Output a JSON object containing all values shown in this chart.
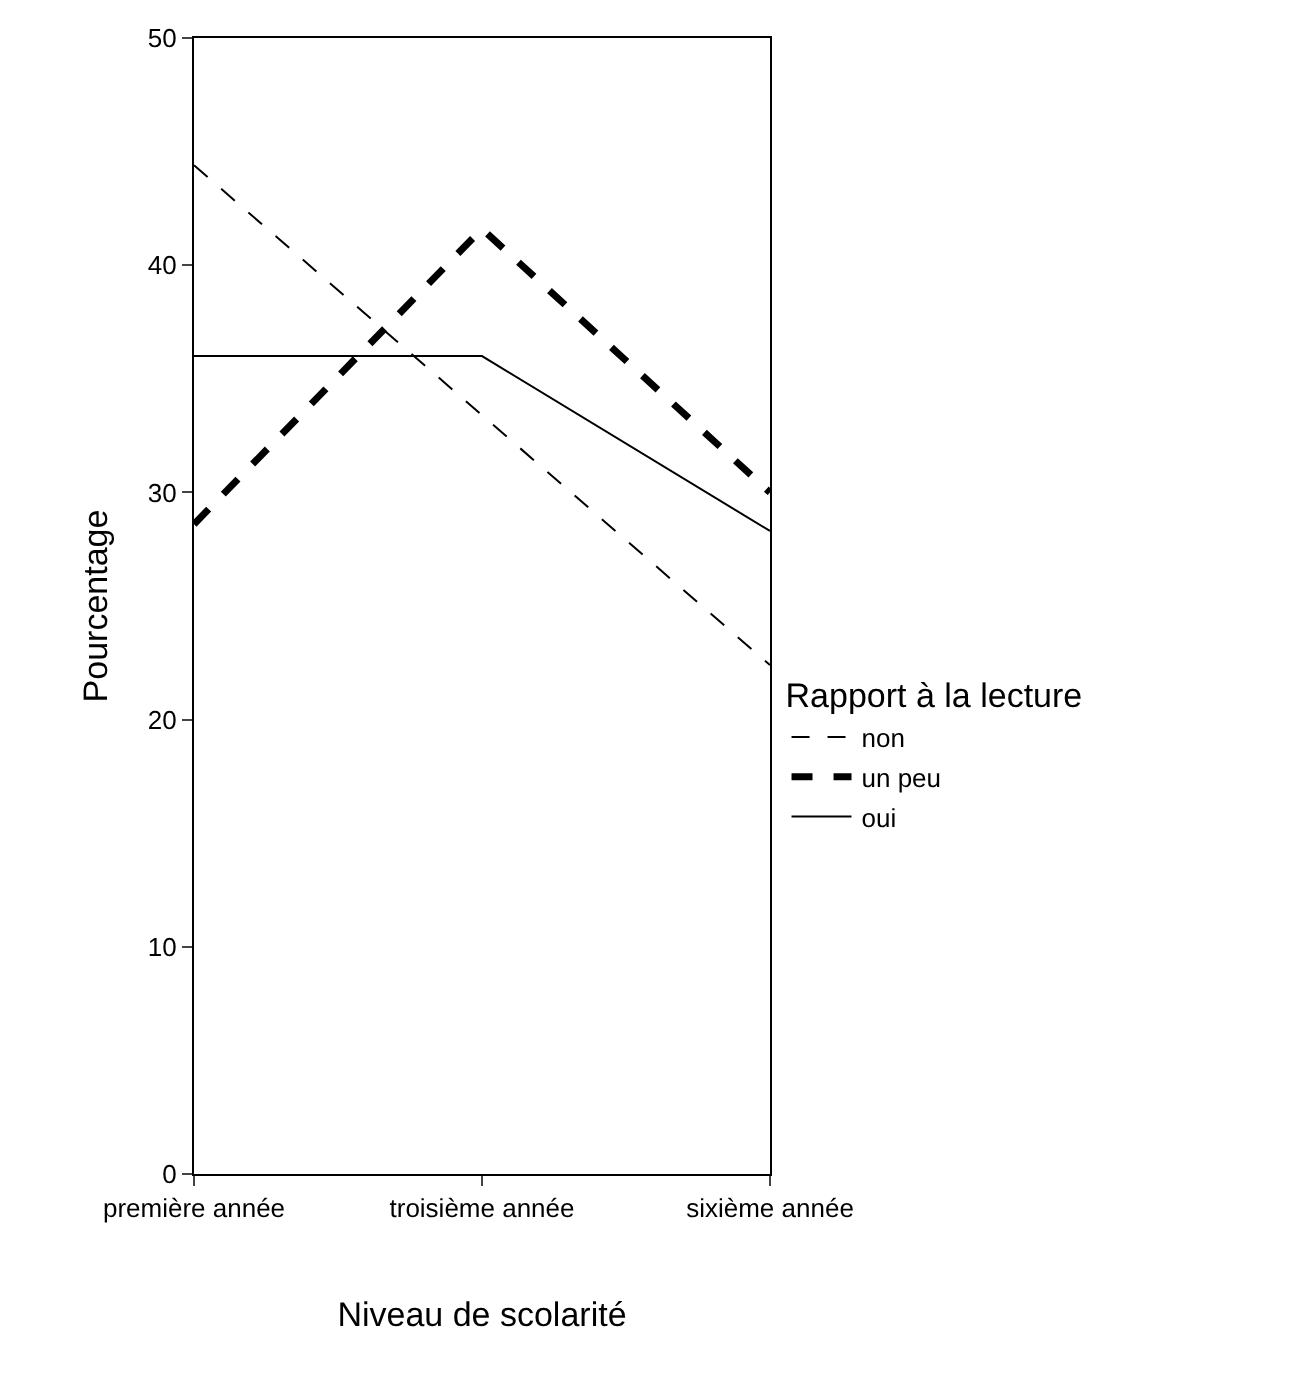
{
  "chart_data": {
    "type": "line",
    "xlabel": "Niveau de scolarité",
    "ylabel": "Pourcentage",
    "legend_title": "Rapport à la lecture",
    "categories": [
      "première année",
      "troisième année",
      "sixième année"
    ],
    "series": [
      {
        "name": "non",
        "color": "#000000",
        "values": [
          44.4,
          33.4,
          22.4
        ],
        "line_style": "dashed"
      },
      {
        "name": "un peu",
        "color": "#000000",
        "values": [
          28.6,
          41.6,
          30.0
        ],
        "line_style": "dashed"
      },
      {
        "name": "oui",
        "color": "#000000",
        "values": [
          36.0,
          36.0,
          28.3
        ],
        "line_style": "solid"
      }
    ],
    "ylim": [
      0,
      50
    ],
    "yticks": [
      0,
      10,
      20,
      30,
      40,
      50
    ],
    "legend": "right",
    "marker": "none"
  }
}
